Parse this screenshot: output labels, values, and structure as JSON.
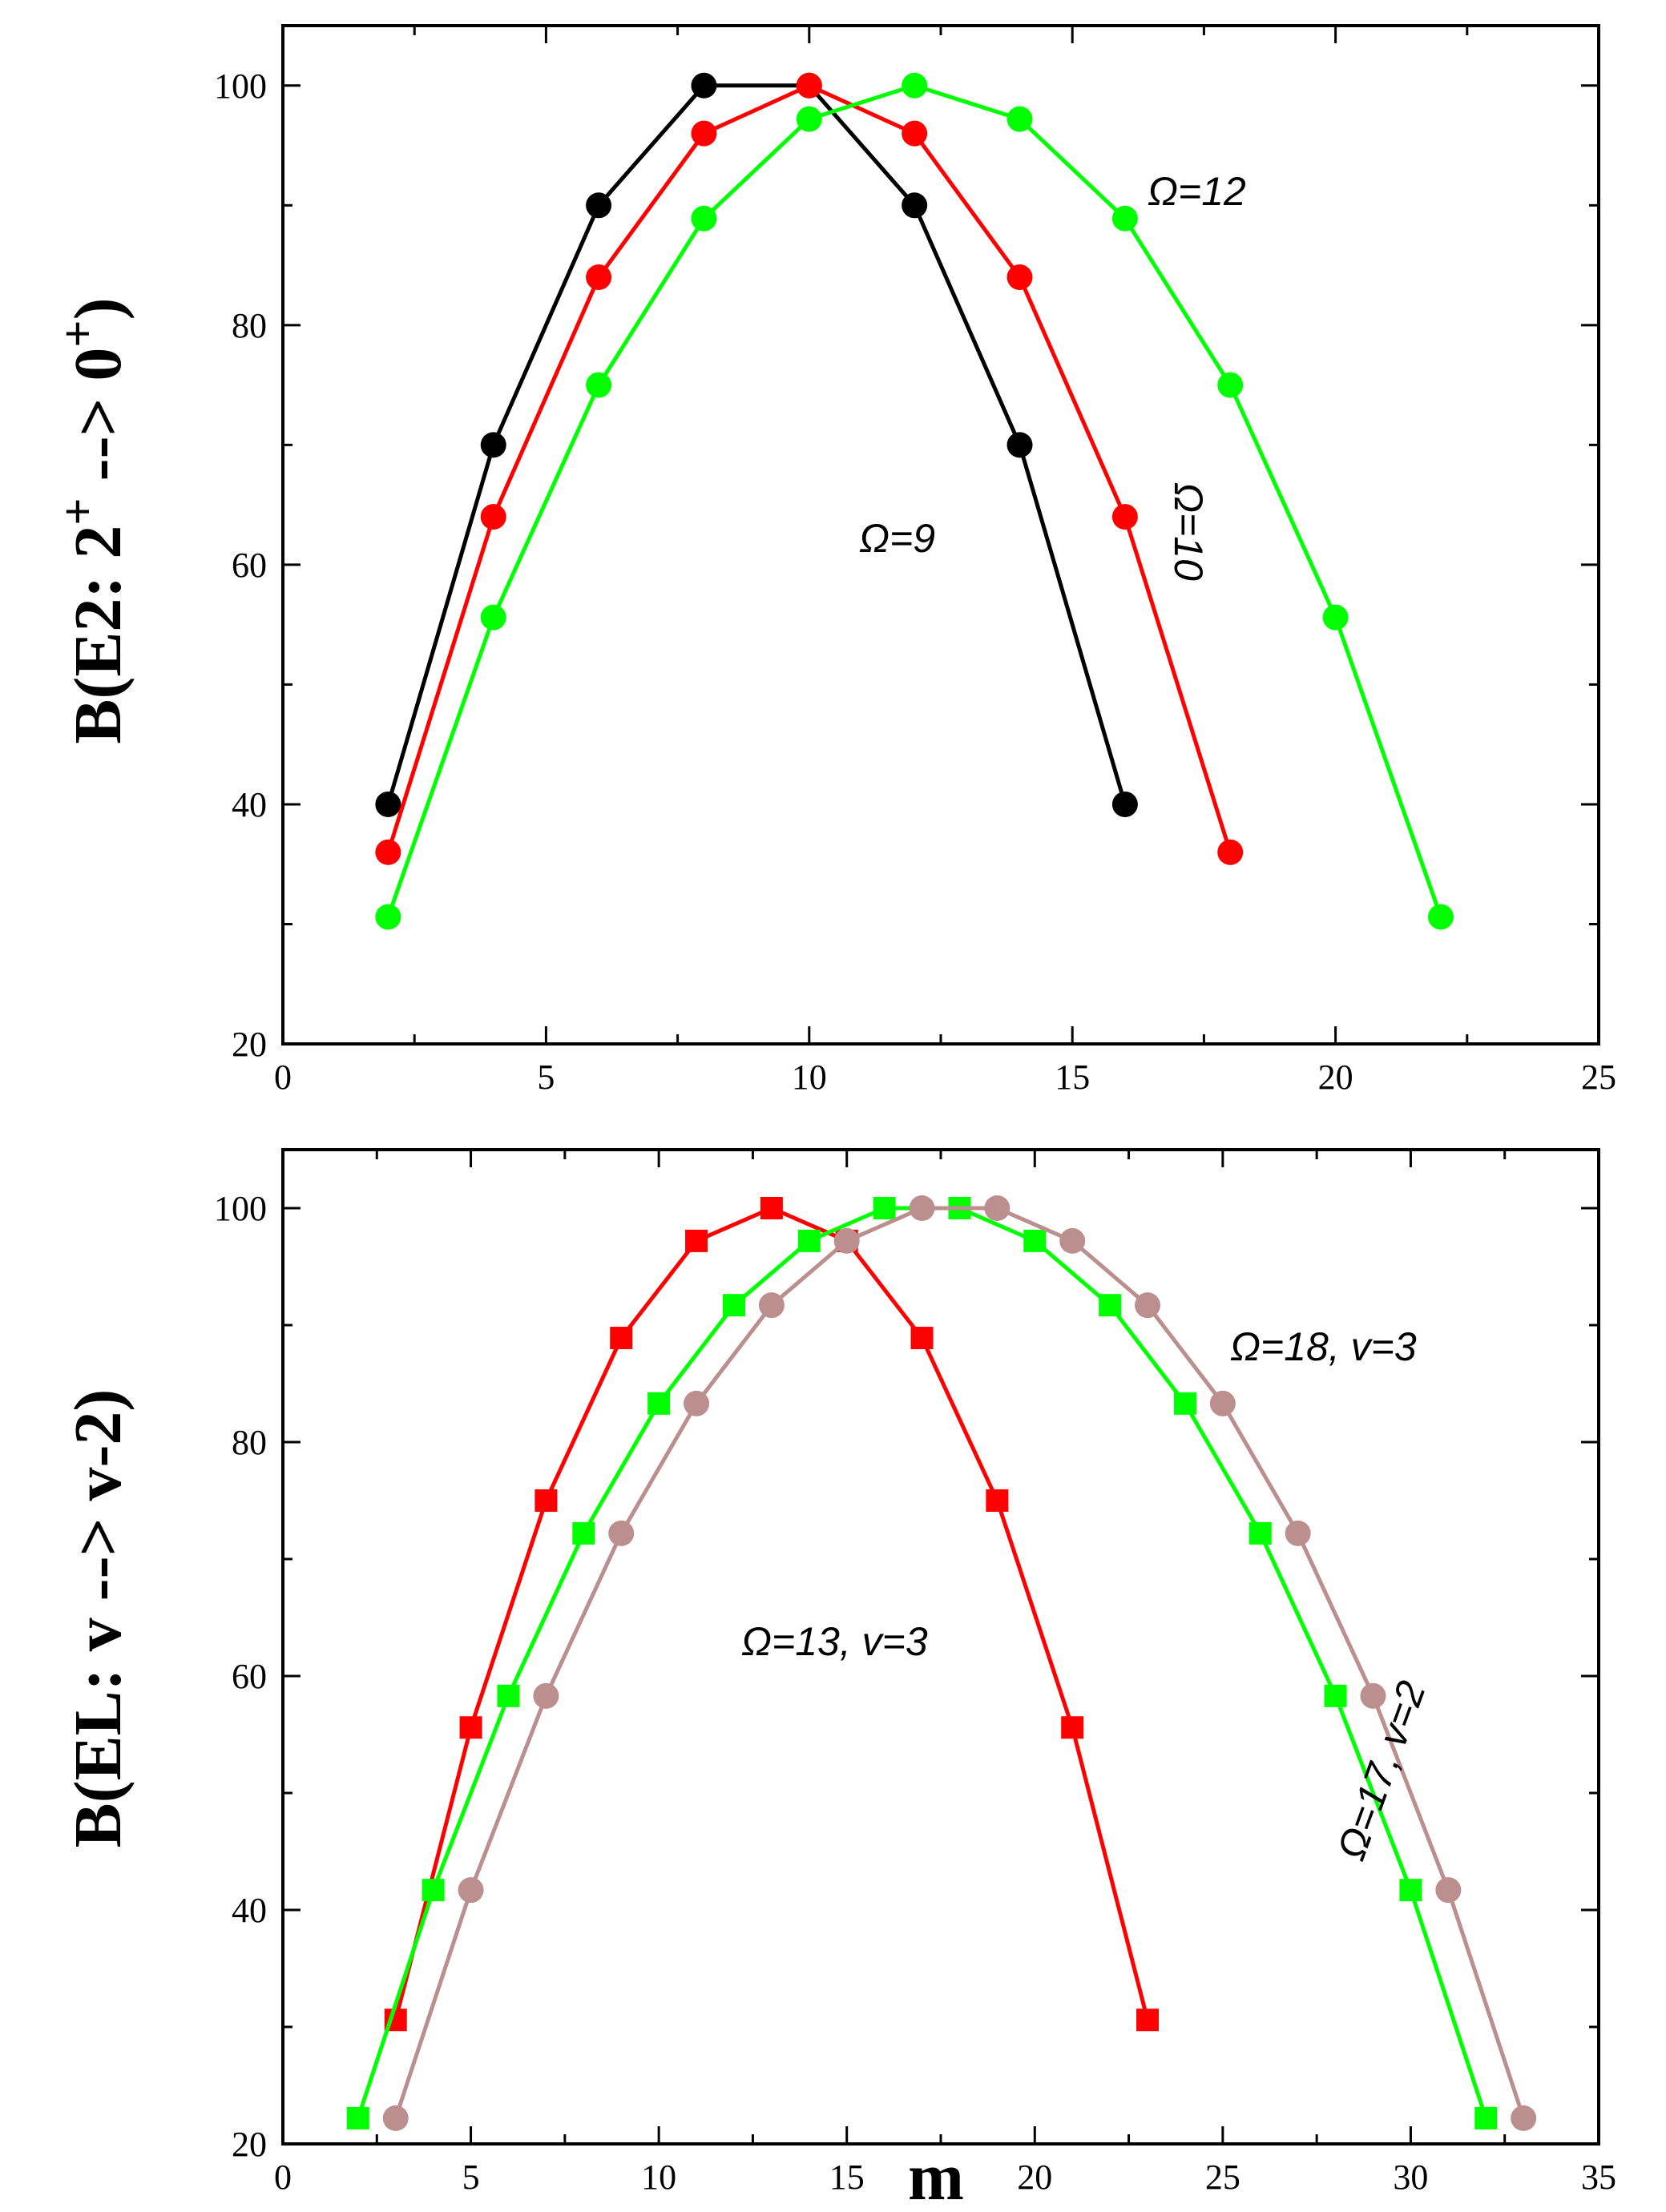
{
  "chart_data": [
    {
      "type": "line",
      "title": "",
      "xlabel": "",
      "ylabel": "B(E2: 2⁺ --> 0⁺)",
      "xlim": [
        0,
        25
      ],
      "ylim": [
        20,
        105
      ],
      "xticks": [
        0,
        5,
        10,
        15,
        20,
        25
      ],
      "yticks": [
        20,
        40,
        60,
        80,
        100
      ],
      "series": [
        {
          "name": "Ω=9",
          "color": "#000000",
          "marker": "circle",
          "x": [
            2,
            4,
            6,
            8,
            10,
            12,
            14,
            16
          ],
          "y": [
            40,
            70,
            90,
            100,
            100,
            90,
            70,
            40
          ]
        },
        {
          "name": "Ω=10",
          "color": "#ff0000",
          "marker": "circle",
          "x": [
            2,
            4,
            6,
            8,
            10,
            12,
            14,
            16,
            18
          ],
          "y": [
            36,
            64,
            84,
            96,
            100,
            96,
            84,
            64,
            36
          ]
        },
        {
          "name": "Ω=12",
          "color": "#00ff00",
          "marker": "circle",
          "x": [
            2,
            4,
            6,
            8,
            10,
            12,
            14,
            16,
            18,
            20,
            22
          ],
          "y": [
            30.6,
            55.6,
            75,
            88.9,
            97.2,
            100,
            97.2,
            88.9,
            75,
            55.6,
            30.6
          ]
        }
      ],
      "annotations": [
        {
          "text": "Ω=12"
        },
        {
          "text": "Ω=9"
        },
        {
          "text": "Ω=10"
        }
      ]
    },
    {
      "type": "line",
      "title": "",
      "xlabel": "m",
      "ylabel": "B(EL: v --> v-2)",
      "xlim": [
        0,
        35
      ],
      "ylim": [
        20,
        105
      ],
      "xticks": [
        0,
        5,
        10,
        15,
        20,
        25,
        30,
        35
      ],
      "yticks": [
        20,
        40,
        60,
        80,
        100
      ],
      "series": [
        {
          "name": "Ω=13, v=3",
          "color": "#ff0000",
          "marker": "square",
          "x": [
            3,
            5,
            7,
            9,
            11,
            13,
            15,
            17,
            19,
            21,
            23
          ],
          "y": [
            30.6,
            55.6,
            75,
            88.9,
            97.2,
            100,
            97.2,
            88.9,
            75,
            55.6,
            30.6
          ]
        },
        {
          "name": "Ω=17, v=2",
          "color": "#00ff00",
          "marker": "square",
          "x": [
            2,
            4,
            6,
            8,
            10,
            12,
            14,
            16,
            18,
            20,
            22,
            24,
            26,
            28,
            30,
            32
          ],
          "y": [
            22.2,
            41.7,
            58.3,
            72.2,
            83.3,
            91.7,
            97.2,
            100,
            100,
            97.2,
            91.7,
            83.3,
            72.2,
            58.3,
            41.7,
            22.2
          ]
        },
        {
          "name": "Ω=18, v=3",
          "color": "#bc8f8f",
          "marker": "circle",
          "x": [
            3,
            5,
            7,
            9,
            11,
            13,
            15,
            17,
            19,
            21,
            23,
            25,
            27,
            29,
            31,
            33
          ],
          "y": [
            22.2,
            41.7,
            58.3,
            72.2,
            83.3,
            91.7,
            97.2,
            100,
            100,
            97.2,
            91.7,
            83.3,
            72.2,
            58.3,
            41.7,
            22.2
          ]
        }
      ],
      "annotations": [
        {
          "text": "Ω=18, v=3"
        },
        {
          "text": "Ω=13, v=3"
        },
        {
          "text": "Ω=17, v=2"
        }
      ]
    }
  ]
}
